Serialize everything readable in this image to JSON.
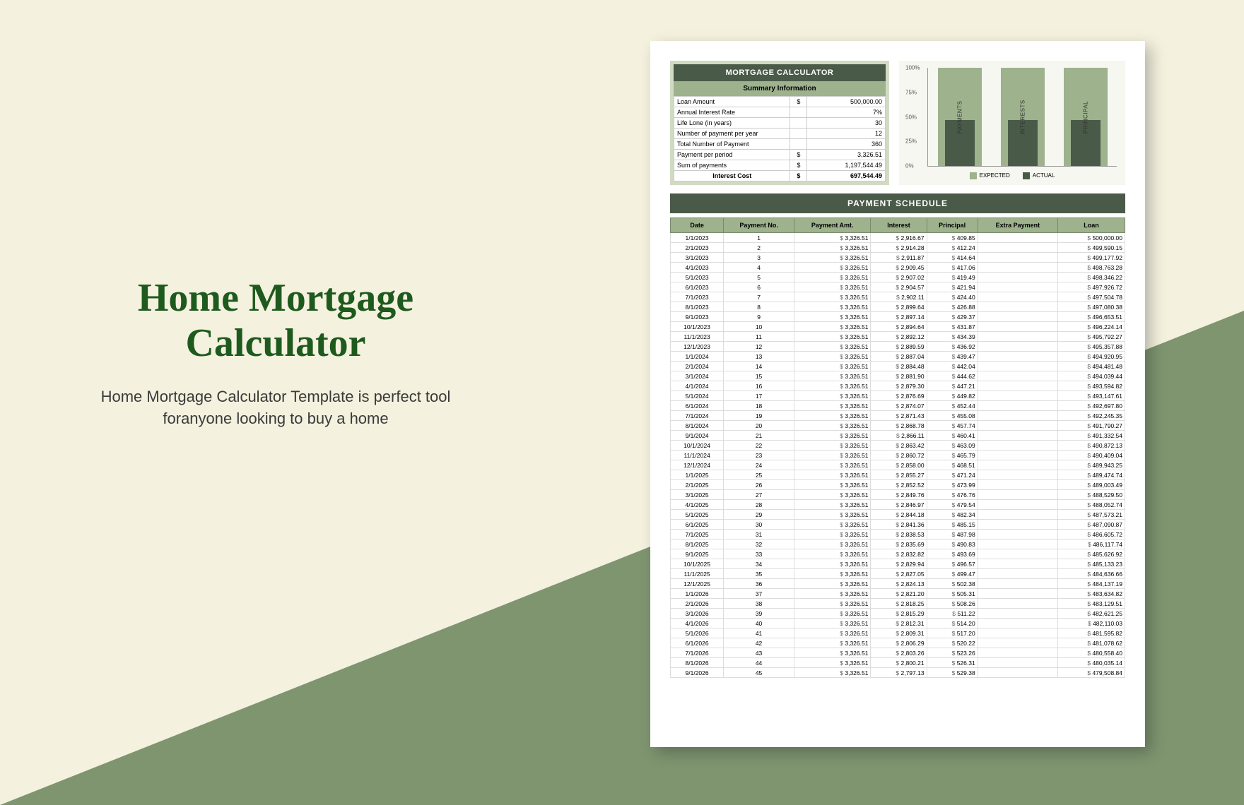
{
  "left": {
    "title": "Home Mortgage Calculator",
    "subtitle": "Home Mortgage Calculator Template is perfect tool foranyone looking to buy a home"
  },
  "colors": {
    "page_bg": "#f4f1de",
    "diagonal": "#7e9570",
    "title": "#1e5a1e",
    "header_dark": "#4a5a48",
    "header_mid": "#9db28d",
    "panel_light": "#d1dbc4",
    "chart_bg": "#f5f7f0"
  },
  "summary": {
    "header": "MORTGAGE CALCULATOR",
    "subheader": "Summary Information",
    "rows": [
      {
        "label": "Loan Amount",
        "cur": "$",
        "value": "500,000.00"
      },
      {
        "label": "Annual Interest Rate",
        "cur": "",
        "value": "7%"
      },
      {
        "label": "Life Lone (in years)",
        "cur": "",
        "value": "30"
      },
      {
        "label": "Number of payment per year",
        "cur": "",
        "value": "12"
      },
      {
        "label": "Total Number of Payment",
        "cur": "",
        "value": "360"
      },
      {
        "label": "Payment per period",
        "cur": "$",
        "value": "3,326.51"
      },
      {
        "label": "Sum of payments",
        "cur": "$",
        "value": "1,197,544.49"
      }
    ],
    "footer": {
      "label": "Interest Cost",
      "cur": "$",
      "value": "697,544.49"
    }
  },
  "chart": {
    "type": "bar",
    "yticks": [
      0,
      25,
      50,
      75,
      100
    ],
    "bars": [
      {
        "label": "PAYMENTS",
        "expected": 100,
        "actual": 47
      },
      {
        "label": "INTERESTS",
        "expected": 100,
        "actual": 47
      },
      {
        "label": "PRINCIPAL",
        "expected": 100,
        "actual": 47
      }
    ],
    "legend": [
      {
        "label": "EXPECTED",
        "color": "#9db28d"
      },
      {
        "label": "ACTUAL",
        "color": "#4a5a48"
      }
    ]
  },
  "schedule": {
    "title": "PAYMENT SCHEDULE",
    "columns": [
      "Date",
      "Payment No.",
      "Payment Amt.",
      "Interest",
      "Principal",
      "Extra Payment",
      "Loan"
    ],
    "rows": [
      {
        "date": "1/1/2023",
        "no": 1,
        "amt": "3,326.51",
        "int": "2,916.67",
        "prin": "409.85",
        "extra": "",
        "loan": "500,000.00"
      },
      {
        "date": "2/1/2023",
        "no": 2,
        "amt": "3,326.51",
        "int": "2,914.28",
        "prin": "412.24",
        "extra": "",
        "loan": "499,590.15"
      },
      {
        "date": "3/1/2023",
        "no": 3,
        "amt": "3,326.51",
        "int": "2,911.87",
        "prin": "414.64",
        "extra": "",
        "loan": "499,177.92"
      },
      {
        "date": "4/1/2023",
        "no": 4,
        "amt": "3,326.51",
        "int": "2,909.45",
        "prin": "417.06",
        "extra": "",
        "loan": "498,763.28"
      },
      {
        "date": "5/1/2023",
        "no": 5,
        "amt": "3,326.51",
        "int": "2,907.02",
        "prin": "419.49",
        "extra": "",
        "loan": "498,346.22"
      },
      {
        "date": "6/1/2023",
        "no": 6,
        "amt": "3,326.51",
        "int": "2,904.57",
        "prin": "421.94",
        "extra": "",
        "loan": "497,926.72"
      },
      {
        "date": "7/1/2023",
        "no": 7,
        "amt": "3,326.51",
        "int": "2,902.11",
        "prin": "424.40",
        "extra": "",
        "loan": "497,504.78"
      },
      {
        "date": "8/1/2023",
        "no": 8,
        "amt": "3,326.51",
        "int": "2,899.64",
        "prin": "426.88",
        "extra": "",
        "loan": "497,080.38"
      },
      {
        "date": "9/1/2023",
        "no": 9,
        "amt": "3,326.51",
        "int": "2,897.14",
        "prin": "429.37",
        "extra": "",
        "loan": "496,653.51"
      },
      {
        "date": "10/1/2023",
        "no": 10,
        "amt": "3,326.51",
        "int": "2,894.64",
        "prin": "431.87",
        "extra": "",
        "loan": "496,224.14"
      },
      {
        "date": "11/1/2023",
        "no": 11,
        "amt": "3,326.51",
        "int": "2,892.12",
        "prin": "434.39",
        "extra": "",
        "loan": "495,792.27"
      },
      {
        "date": "12/1/2023",
        "no": 12,
        "amt": "3,326.51",
        "int": "2,889.59",
        "prin": "436.92",
        "extra": "",
        "loan": "495,357.88"
      },
      {
        "date": "1/1/2024",
        "no": 13,
        "amt": "3,326.51",
        "int": "2,887.04",
        "prin": "439.47",
        "extra": "",
        "loan": "494,920.95"
      },
      {
        "date": "2/1/2024",
        "no": 14,
        "amt": "3,326.51",
        "int": "2,884.48",
        "prin": "442.04",
        "extra": "",
        "loan": "494,481.48"
      },
      {
        "date": "3/1/2024",
        "no": 15,
        "amt": "3,326.51",
        "int": "2,881.90",
        "prin": "444.62",
        "extra": "",
        "loan": "494,039.44"
      },
      {
        "date": "4/1/2024",
        "no": 16,
        "amt": "3,326.51",
        "int": "2,879.30",
        "prin": "447.21",
        "extra": "",
        "loan": "493,594.82"
      },
      {
        "date": "5/1/2024",
        "no": 17,
        "amt": "3,326.51",
        "int": "2,876.69",
        "prin": "449.82",
        "extra": "",
        "loan": "493,147.61"
      },
      {
        "date": "6/1/2024",
        "no": 18,
        "amt": "3,326.51",
        "int": "2,874.07",
        "prin": "452.44",
        "extra": "",
        "loan": "492,697.80"
      },
      {
        "date": "7/1/2024",
        "no": 19,
        "amt": "3,326.51",
        "int": "2,871.43",
        "prin": "455.08",
        "extra": "",
        "loan": "492,245.35"
      },
      {
        "date": "8/1/2024",
        "no": 20,
        "amt": "3,326.51",
        "int": "2,868.78",
        "prin": "457.74",
        "extra": "",
        "loan": "491,790.27"
      },
      {
        "date": "9/1/2024",
        "no": 21,
        "amt": "3,326.51",
        "int": "2,866.11",
        "prin": "460.41",
        "extra": "",
        "loan": "491,332.54"
      },
      {
        "date": "10/1/2024",
        "no": 22,
        "amt": "3,326.51",
        "int": "2,863.42",
        "prin": "463.09",
        "extra": "",
        "loan": "490,872.13"
      },
      {
        "date": "11/1/2024",
        "no": 23,
        "amt": "3,326.51",
        "int": "2,860.72",
        "prin": "465.79",
        "extra": "",
        "loan": "490,409.04"
      },
      {
        "date": "12/1/2024",
        "no": 24,
        "amt": "3,326.51",
        "int": "2,858.00",
        "prin": "468.51",
        "extra": "",
        "loan": "489,943.25"
      },
      {
        "date": "1/1/2025",
        "no": 25,
        "amt": "3,326.51",
        "int": "2,855.27",
        "prin": "471.24",
        "extra": "",
        "loan": "489,474.74"
      },
      {
        "date": "2/1/2025",
        "no": 26,
        "amt": "3,326.51",
        "int": "2,852.52",
        "prin": "473.99",
        "extra": "",
        "loan": "489,003.49"
      },
      {
        "date": "3/1/2025",
        "no": 27,
        "amt": "3,326.51",
        "int": "2,849.76",
        "prin": "476.76",
        "extra": "",
        "loan": "488,529.50"
      },
      {
        "date": "4/1/2025",
        "no": 28,
        "amt": "3,326.51",
        "int": "2,846.97",
        "prin": "479.54",
        "extra": "",
        "loan": "488,052.74"
      },
      {
        "date": "5/1/2025",
        "no": 29,
        "amt": "3,326.51",
        "int": "2,844.18",
        "prin": "482.34",
        "extra": "",
        "loan": "487,573.21"
      },
      {
        "date": "6/1/2025",
        "no": 30,
        "amt": "3,326.51",
        "int": "2,841.36",
        "prin": "485.15",
        "extra": "",
        "loan": "487,090.87"
      },
      {
        "date": "7/1/2025",
        "no": 31,
        "amt": "3,326.51",
        "int": "2,838.53",
        "prin": "487.98",
        "extra": "",
        "loan": "486,605.72"
      },
      {
        "date": "8/1/2025",
        "no": 32,
        "amt": "3,326.51",
        "int": "2,835.69",
        "prin": "490.83",
        "extra": "",
        "loan": "486,117.74"
      },
      {
        "date": "9/1/2025",
        "no": 33,
        "amt": "3,326.51",
        "int": "2,832.82",
        "prin": "493.69",
        "extra": "",
        "loan": "485,626.92"
      },
      {
        "date": "10/1/2025",
        "no": 34,
        "amt": "3,326.51",
        "int": "2,829.94",
        "prin": "496.57",
        "extra": "",
        "loan": "485,133.23"
      },
      {
        "date": "11/1/2025",
        "no": 35,
        "amt": "3,326.51",
        "int": "2,827.05",
        "prin": "499.47",
        "extra": "",
        "loan": "484,636.66"
      },
      {
        "date": "12/1/2025",
        "no": 36,
        "amt": "3,326.51",
        "int": "2,824.13",
        "prin": "502.38",
        "extra": "",
        "loan": "484,137.19"
      },
      {
        "date": "1/1/2026",
        "no": 37,
        "amt": "3,326.51",
        "int": "2,821.20",
        "prin": "505.31",
        "extra": "",
        "loan": "483,634.82"
      },
      {
        "date": "2/1/2026",
        "no": 38,
        "amt": "3,326.51",
        "int": "2,818.25",
        "prin": "508.26",
        "extra": "",
        "loan": "483,129.51"
      },
      {
        "date": "3/1/2026",
        "no": 39,
        "amt": "3,326.51",
        "int": "2,815.29",
        "prin": "511.22",
        "extra": "",
        "loan": "482,621.25"
      },
      {
        "date": "4/1/2026",
        "no": 40,
        "amt": "3,326.51",
        "int": "2,812.31",
        "prin": "514.20",
        "extra": "",
        "loan": "482,110.03"
      },
      {
        "date": "5/1/2026",
        "no": 41,
        "amt": "3,326.51",
        "int": "2,809.31",
        "prin": "517.20",
        "extra": "",
        "loan": "481,595.82"
      },
      {
        "date": "6/1/2026",
        "no": 42,
        "amt": "3,326.51",
        "int": "2,806.29",
        "prin": "520.22",
        "extra": "",
        "loan": "481,078.62"
      },
      {
        "date": "7/1/2026",
        "no": 43,
        "amt": "3,326.51",
        "int": "2,803.26",
        "prin": "523.26",
        "extra": "",
        "loan": "480,558.40"
      },
      {
        "date": "8/1/2026",
        "no": 44,
        "amt": "3,326.51",
        "int": "2,800.21",
        "prin": "526.31",
        "extra": "",
        "loan": "480,035.14"
      },
      {
        "date": "9/1/2026",
        "no": 45,
        "amt": "3,326.51",
        "int": "2,797.13",
        "prin": "529.38",
        "extra": "",
        "loan": "479,508.84"
      }
    ]
  }
}
